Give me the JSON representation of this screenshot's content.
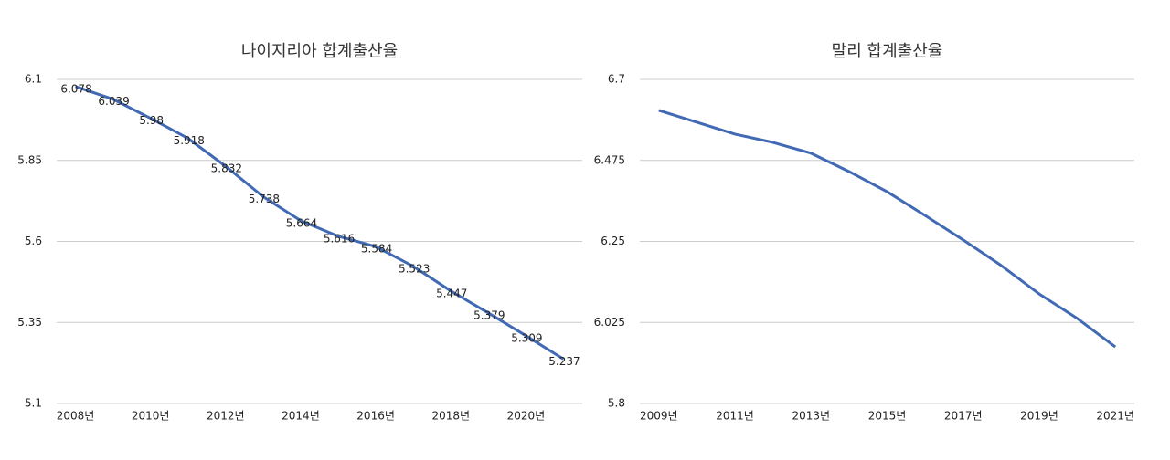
{
  "chart_data": [
    {
      "type": "line",
      "title": "나이지리아 합계출산율",
      "categories": [
        "2008년",
        null,
        "2010년",
        null,
        "2012년",
        null,
        "2014년",
        null,
        "2016년",
        null,
        "2018년",
        null,
        "2020년",
        null
      ],
      "series": [
        {
          "color": "#4169b4",
          "values": [
            6.078,
            6.039,
            5.98,
            5.918,
            5.832,
            5.738,
            5.664,
            5.616,
            5.584,
            5.523,
            5.447,
            5.379,
            5.309,
            5.237
          ]
        }
      ],
      "ylim": [
        5.1,
        6.1
      ],
      "yticks": [
        5.1,
        5.35,
        5.6,
        5.85,
        6.1
      ],
      "grid": true,
      "data_labels": true
    },
    {
      "type": "line",
      "title": "말리 합계출산율",
      "categories": [
        "2009년",
        null,
        "2011년",
        null,
        "2013년",
        null,
        "2015년",
        null,
        "2017년",
        null,
        "2019년",
        null,
        "2021년"
      ],
      "series": [
        {
          "color": "#4169b4",
          "values": [
            6.614,
            6.581,
            6.548,
            6.525,
            6.495,
            6.444,
            6.388,
            6.322,
            6.254,
            6.183,
            6.104,
            6.036,
            5.957
          ]
        }
      ],
      "ylim": [
        5.8,
        6.7
      ],
      "yticks": [
        5.8,
        6.025,
        6.25,
        6.475,
        6.7
      ],
      "grid": true,
      "data_labels": false
    }
  ]
}
